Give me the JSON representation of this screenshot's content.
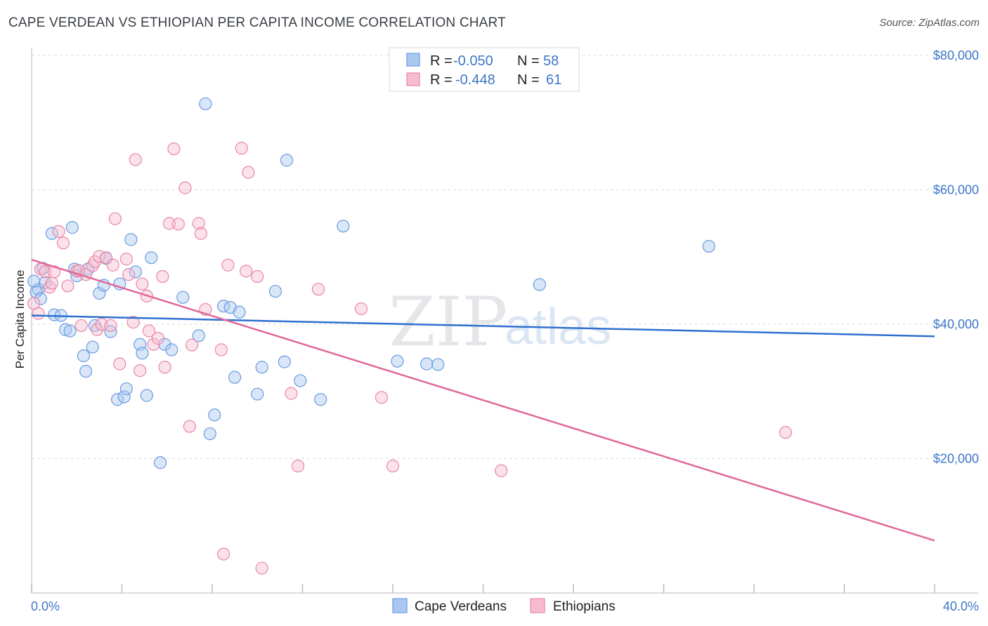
{
  "title": "CAPE VERDEAN VS ETHIOPIAN PER CAPITA INCOME CORRELATION CHART",
  "source": "Source: ZipAtlas.com",
  "watermark": {
    "part1": "ZIP",
    "part2": "atlas"
  },
  "legend_top": [
    {
      "r_label": "R =",
      "r_value": "-0.050",
      "n_label": "N =",
      "n_value": "58",
      "color": "#a9c8f0",
      "stroke": "#6b9be0"
    },
    {
      "r_label": "R =",
      "r_value": "-0.448",
      "n_label": "N =",
      "n_value": "61",
      "color": "#f7bcd0",
      "stroke": "#e887a8"
    }
  ],
  "legend_bottom": [
    {
      "label": "Cape Verdeans",
      "color": "#a9c8f0",
      "stroke": "#6b9be0"
    },
    {
      "label": "Ethiopians",
      "color": "#f7bcd0",
      "stroke": "#e887a8"
    }
  ],
  "chart_data": {
    "type": "scatter",
    "title": "CAPE VERDEAN VS ETHIOPIAN PER CAPITA INCOME CORRELATION CHART",
    "xlabel": "",
    "ylabel": "Per Capita Income",
    "xlim": [
      0,
      40
    ],
    "ylim": [
      0,
      80000
    ],
    "x_tick_labels": [
      "0.0%",
      "40.0%"
    ],
    "y_ticks": [
      20000,
      40000,
      60000,
      80000
    ],
    "y_tick_labels": [
      "$20,000",
      "$40,000",
      "$60,000",
      "$80,000"
    ],
    "grid": true,
    "legend_position": "top-center",
    "series": [
      {
        "name": "Cape Verdeans",
        "color": "#6b9be0",
        "fill": "#a9c8f0",
        "trend": {
          "x": [
            0,
            40
          ],
          "y": [
            41300,
            38200
          ],
          "color": "#2f6fd0"
        },
        "points": [
          [
            0.3,
            45200
          ],
          [
            0.6,
            46200
          ],
          [
            0.5,
            48300
          ],
          [
            0.2,
            44800
          ],
          [
            0.4,
            43800
          ],
          [
            1.0,
            41400
          ],
          [
            1.3,
            41300
          ],
          [
            1.5,
            39200
          ],
          [
            1.7,
            39000
          ],
          [
            0.9,
            53500
          ],
          [
            1.9,
            48200
          ],
          [
            2.0,
            47200
          ],
          [
            1.8,
            54400
          ],
          [
            2.5,
            48200
          ],
          [
            2.3,
            35300
          ],
          [
            2.4,
            33000
          ],
          [
            2.7,
            36600
          ],
          [
            2.8,
            39800
          ],
          [
            3.0,
            44600
          ],
          [
            3.2,
            45800
          ],
          [
            3.3,
            49800
          ],
          [
            3.5,
            38900
          ],
          [
            3.8,
            28800
          ],
          [
            4.1,
            29200
          ],
          [
            4.2,
            30400
          ],
          [
            3.9,
            46000
          ],
          [
            4.4,
            52600
          ],
          [
            4.6,
            47800
          ],
          [
            4.8,
            37000
          ],
          [
            4.9,
            35700
          ],
          [
            5.1,
            29400
          ],
          [
            5.3,
            49900
          ],
          [
            5.7,
            19400
          ],
          [
            5.9,
            37000
          ],
          [
            6.2,
            36200
          ],
          [
            6.7,
            44000
          ],
          [
            7.4,
            38300
          ],
          [
            7.7,
            72800
          ],
          [
            7.9,
            23700
          ],
          [
            8.1,
            26500
          ],
          [
            8.5,
            42700
          ],
          [
            8.8,
            42500
          ],
          [
            9.0,
            32100
          ],
          [
            9.2,
            41800
          ],
          [
            10.0,
            29600
          ],
          [
            10.2,
            33600
          ],
          [
            10.8,
            44900
          ],
          [
            11.2,
            34400
          ],
          [
            11.3,
            64400
          ],
          [
            11.9,
            31600
          ],
          [
            12.8,
            28800
          ],
          [
            13.8,
            54600
          ],
          [
            16.2,
            34500
          ],
          [
            17.5,
            34100
          ],
          [
            18.0,
            34000
          ],
          [
            22.5,
            45900
          ],
          [
            30.0,
            51600
          ],
          [
            0.1,
            46400
          ]
        ]
      },
      {
        "name": "Ethiopians",
        "color": "#e887a8",
        "fill": "#f7bcd0",
        "trend": {
          "x": [
            0,
            40
          ],
          "y": [
            49600,
            7800
          ],
          "color": "#e0689a"
        },
        "points": [
          [
            0.1,
            43100
          ],
          [
            0.4,
            48200
          ],
          [
            0.6,
            47800
          ],
          [
            0.8,
            45500
          ],
          [
            1.0,
            47800
          ],
          [
            1.2,
            53800
          ],
          [
            1.4,
            52100
          ],
          [
            1.6,
            45700
          ],
          [
            2.0,
            47900
          ],
          [
            2.1,
            48000
          ],
          [
            2.2,
            39800
          ],
          [
            2.4,
            47400
          ],
          [
            2.7,
            48700
          ],
          [
            2.8,
            49300
          ],
          [
            2.9,
            39200
          ],
          [
            3.0,
            50100
          ],
          [
            3.1,
            40000
          ],
          [
            3.3,
            49900
          ],
          [
            3.6,
            48800
          ],
          [
            3.5,
            39800
          ],
          [
            3.7,
            55700
          ],
          [
            3.9,
            34100
          ],
          [
            4.3,
            47400
          ],
          [
            4.2,
            49700
          ],
          [
            4.5,
            40300
          ],
          [
            4.6,
            64500
          ],
          [
            4.8,
            33100
          ],
          [
            4.9,
            46000
          ],
          [
            5.1,
            44200
          ],
          [
            5.2,
            39000
          ],
          [
            5.4,
            37000
          ],
          [
            5.6,
            37900
          ],
          [
            5.8,
            47100
          ],
          [
            5.9,
            33600
          ],
          [
            6.1,
            55000
          ],
          [
            6.3,
            66100
          ],
          [
            6.5,
            54900
          ],
          [
            6.8,
            60300
          ],
          [
            7.0,
            24800
          ],
          [
            7.1,
            36900
          ],
          [
            7.4,
            55000
          ],
          [
            7.5,
            53500
          ],
          [
            7.7,
            42200
          ],
          [
            8.4,
            36200
          ],
          [
            8.5,
            5800
          ],
          [
            8.7,
            48800
          ],
          [
            9.3,
            66200
          ],
          [
            9.5,
            47900
          ],
          [
            9.6,
            62600
          ],
          [
            10.0,
            47100
          ],
          [
            10.2,
            3700
          ],
          [
            11.5,
            29700
          ],
          [
            11.8,
            18900
          ],
          [
            12.7,
            45200
          ],
          [
            14.6,
            42300
          ],
          [
            15.5,
            29100
          ],
          [
            16.0,
            18900
          ],
          [
            20.8,
            18200
          ],
          [
            33.4,
            23900
          ],
          [
            0.3,
            41600
          ],
          [
            0.9,
            46100
          ]
        ]
      }
    ]
  }
}
